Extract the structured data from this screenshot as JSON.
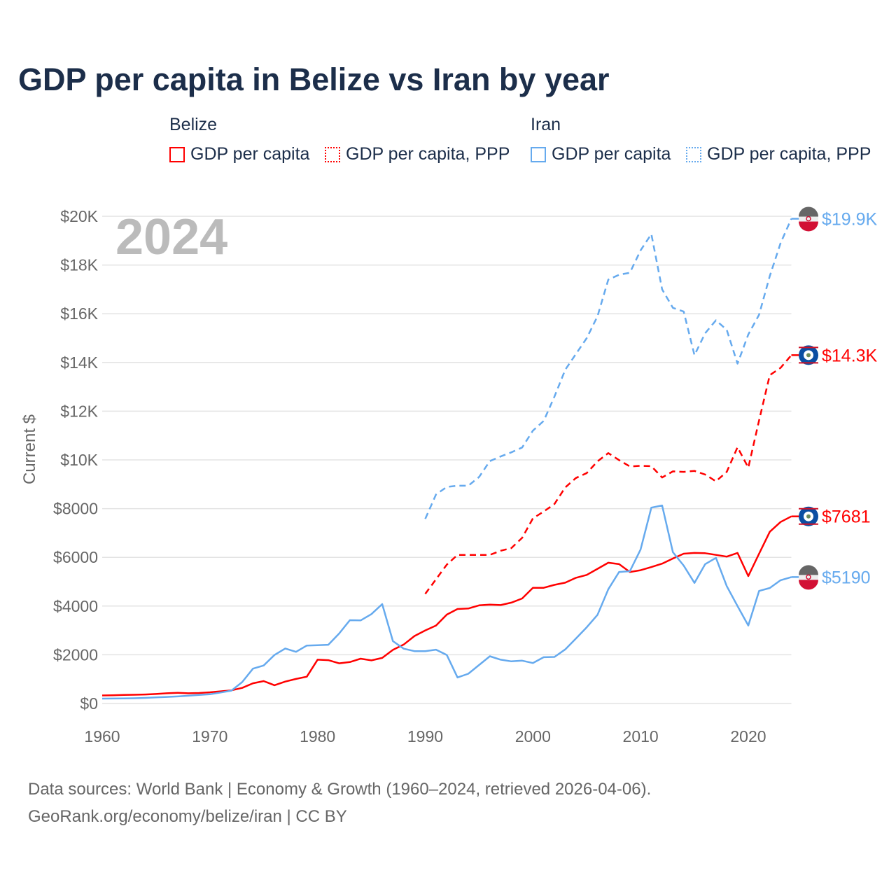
{
  "chart_data": {
    "type": "line",
    "title": "GDP per capita in Belize vs Iran by year",
    "ylabel": "Current $",
    "xlabel": "",
    "year_label": "2024",
    "xlim": [
      1960,
      2024
    ],
    "ylim": [
      0,
      20000
    ],
    "x_ticks": [
      "1960",
      "1970",
      "1980",
      "1990",
      "2000",
      "2010",
      "2020"
    ],
    "y_ticks": [
      "$0",
      "$2000",
      "$4000",
      "$6000",
      "$8000",
      "$10K",
      "$12K",
      "$14K",
      "$16K",
      "$18K",
      "$20K"
    ],
    "legend": {
      "groups": [
        {
          "name": "Belize",
          "items": [
            "GDP per capita",
            "GDP per capita, PPP"
          ]
        },
        {
          "name": "Iran",
          "items": [
            "GDP per capita",
            "GDP per capita, PPP"
          ]
        }
      ]
    },
    "series": [
      {
        "name": "Belize GDP per capita",
        "color": "#ff0000",
        "dash": false,
        "start": 1960,
        "end_label": "$7681",
        "values": [
          330,
          340,
          350,
          360,
          370,
          390,
          420,
          440,
          420,
          430,
          460,
          500,
          540,
          640,
          830,
          920,
          750,
          900,
          1010,
          1100,
          1800,
          1780,
          1650,
          1700,
          1840,
          1770,
          1870,
          2200,
          2420,
          2770,
          3000,
          3200,
          3650,
          3880,
          3900,
          4030,
          4060,
          4040,
          4140,
          4310,
          4750,
          4750,
          4870,
          4960,
          5160,
          5280,
          5530,
          5780,
          5720,
          5400,
          5470,
          5600,
          5740,
          5950,
          6150,
          6180,
          6170,
          6100,
          6030,
          6180,
          5230,
          6150,
          7050,
          7450,
          7681
        ]
      },
      {
        "name": "Belize GDP per capita, PPP",
        "color": "#ff0000",
        "dash": true,
        "start": 1990,
        "end_label": "$14.3K",
        "values": [
          4500,
          5100,
          5700,
          6100,
          6100,
          6100,
          6100,
          6270,
          6380,
          6800,
          7600,
          7880,
          8190,
          8870,
          9260,
          9460,
          9940,
          10280,
          9990,
          9730,
          9760,
          9740,
          9280,
          9530,
          9510,
          9550,
          9400,
          9120,
          9510,
          10520,
          9680,
          11620,
          13480,
          13780,
          14300
        ]
      },
      {
        "name": "Iran GDP per capita",
        "color": "#66aaee",
        "dash": false,
        "start": 1960,
        "end_label": "$5190",
        "values": [
          200,
          205,
          210,
          215,
          230,
          250,
          270,
          290,
          320,
          350,
          380,
          450,
          530,
          880,
          1430,
          1560,
          1990,
          2260,
          2120,
          2380,
          2390,
          2410,
          2870,
          3420,
          3410,
          3670,
          4080,
          2560,
          2250,
          2150,
          2150,
          2210,
          1990,
          1070,
          1220,
          1580,
          1940,
          1800,
          1730,
          1760,
          1660,
          1900,
          1910,
          2220,
          2670,
          3130,
          3640,
          4690,
          5400,
          5430,
          6320,
          8040,
          8130,
          6210,
          5660,
          4950,
          5720,
          5980,
          4820,
          4000,
          3200,
          4620,
          4740,
          5060,
          5190
        ]
      },
      {
        "name": "Iran GDP per capita, PPP",
        "color": "#66aaee",
        "dash": true,
        "start": 1990,
        "end_label": "$19.9K",
        "values": [
          7580,
          8580,
          8890,
          8940,
          8940,
          9300,
          9950,
          10140,
          10310,
          10510,
          11200,
          11600,
          12600,
          13700,
          14350,
          15000,
          15900,
          17400,
          17600,
          17680,
          18600,
          19270,
          17000,
          16240,
          16090,
          14300,
          15200,
          15730,
          15340,
          13950,
          15150,
          15960,
          17550,
          18900,
          19900
        ]
      }
    ]
  },
  "source": {
    "line1": "Data sources: World Bank | Economy & Growth (1960–2024, retrieved 2026-04-06).",
    "line2": "GeoRank.org/economy/belize/iran | CC BY"
  }
}
